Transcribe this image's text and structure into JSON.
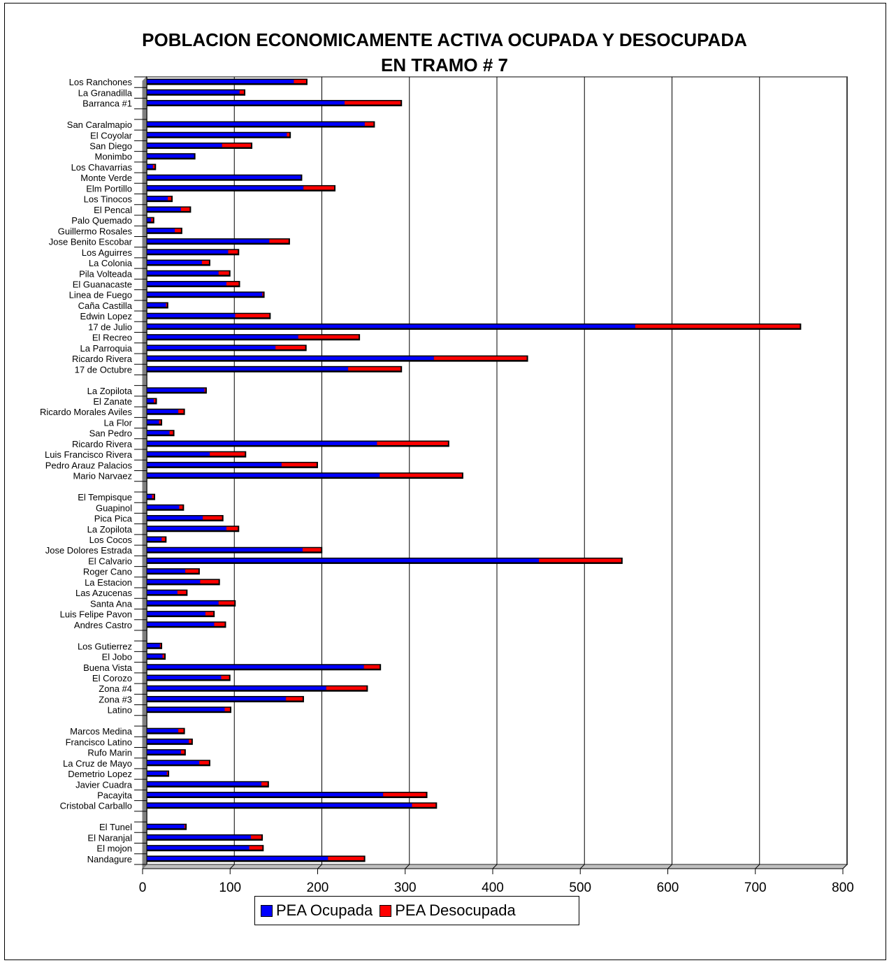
{
  "chart_data": {
    "type": "bar",
    "orientation": "horizontal",
    "stacked": true,
    "title": "POBLACION ECONOMICAMENTE ACTIVA OCUPADA Y DESOCUPADA",
    "subtitle": "EN TRAMO # 7",
    "xlim": [
      0,
      800
    ],
    "xticks": [
      0,
      100,
      200,
      300,
      400,
      500,
      600,
      700,
      800
    ],
    "grid": true,
    "legend_position": "bottom",
    "categories": [
      "Los Ranchones",
      "La Granadilla",
      "Barranca #1",
      "",
      "San Caralmapio",
      "El Coyolar",
      "San Diego",
      "Monimbo",
      "Los Chavarrias",
      "Monte Verde",
      "Elm Portillo",
      "Los Tinocos",
      "El Pencal",
      "Palo Quemado",
      "Guillermo Rosales",
      "Jose Benito Escobar",
      "Los Aguirres",
      "La Colonia",
      "Pila Volteada",
      "El Guanacaste",
      "Linea de Fuego",
      "Caña Castilla",
      "Edwin Lopez",
      "17 de Julio",
      "El Recreo",
      "La Parroquia",
      "Ricardo Rivera",
      "17 de Octubre",
      "",
      "La Zopilota",
      "El Zanate",
      "Ricardo Morales Aviles",
      "La Flor",
      "San Pedro",
      "Ricardo Rivera",
      "Luis Francisco Rivera",
      "Pedro Arauz Palacios",
      "Mario Narvaez",
      "",
      "El Tempisque",
      "Guapinol",
      "Pica Pica",
      "La Zopilota",
      "Los Cocos",
      "Jose Dolores Estrada",
      "El Calvario",
      "Roger Cano",
      "La Estacion",
      "Las Azucenas",
      "Santa Ana",
      "Luis Felipe Pavon",
      "Andres Castro",
      "",
      "Los Gutierrez",
      "El Jobo",
      "Buena Vista",
      "El Corozo",
      "Zona #4",
      "Zona #3",
      "Latino",
      "",
      "Marcos Medina",
      "Francisco Latino",
      "Rufo Marin",
      "La Cruz de Mayo",
      "Demetrio Lopez",
      "Javier Cuadra",
      "Pacayita",
      "Cristobal Carballo",
      "",
      "El Tunel",
      "El Naranjal",
      "El mojon",
      "Nandagure"
    ],
    "series": [
      {
        "name": "PEA Ocupada",
        "color": "#0000ff",
        "values": [
          168,
          106,
          226,
          null,
          249,
          160,
          86,
          54,
          7,
          176,
          179,
          24,
          39,
          5,
          32,
          140,
          93,
          63,
          82,
          91,
          132,
          22,
          101,
          558,
          173,
          147,
          328,
          230,
          null,
          66,
          8,
          36,
          14,
          26,
          263,
          72,
          154,
          266,
          null,
          6,
          37,
          64,
          91,
          17,
          178,
          448,
          44,
          61,
          35,
          82,
          67,
          77,
          null,
          15,
          18,
          248,
          85,
          205,
          159,
          89,
          null,
          36,
          48,
          39,
          60,
          23,
          131,
          270,
          303,
          null,
          43,
          119,
          117,
          207
        ]
      },
      {
        "name": "PEA Desocupada",
        "color": "#ff0000",
        "values": [
          14,
          5,
          64,
          null,
          10,
          3,
          33,
          0,
          2,
          0,
          35,
          4,
          10,
          2,
          7,
          22,
          11,
          8,
          12,
          14,
          1,
          1,
          39,
          188,
          69,
          34,
          106,
          60,
          null,
          1,
          2,
          6,
          2,
          4,
          81,
          40,
          40,
          94,
          null,
          2,
          4,
          22,
          13,
          4,
          21,
          94,
          15,
          21,
          10,
          18,
          9,
          12,
          null,
          1,
          2,
          18,
          9,
          46,
          19,
          6,
          null,
          6,
          3,
          4,
          11,
          1,
          7,
          49,
          27,
          null,
          1,
          12,
          15,
          41
        ]
      }
    ]
  },
  "legend": {
    "items": [
      {
        "label": "PEA Ocupada",
        "color": "#0000ff"
      },
      {
        "label": "PEA Desocupada",
        "color": "#ff0000"
      }
    ]
  }
}
